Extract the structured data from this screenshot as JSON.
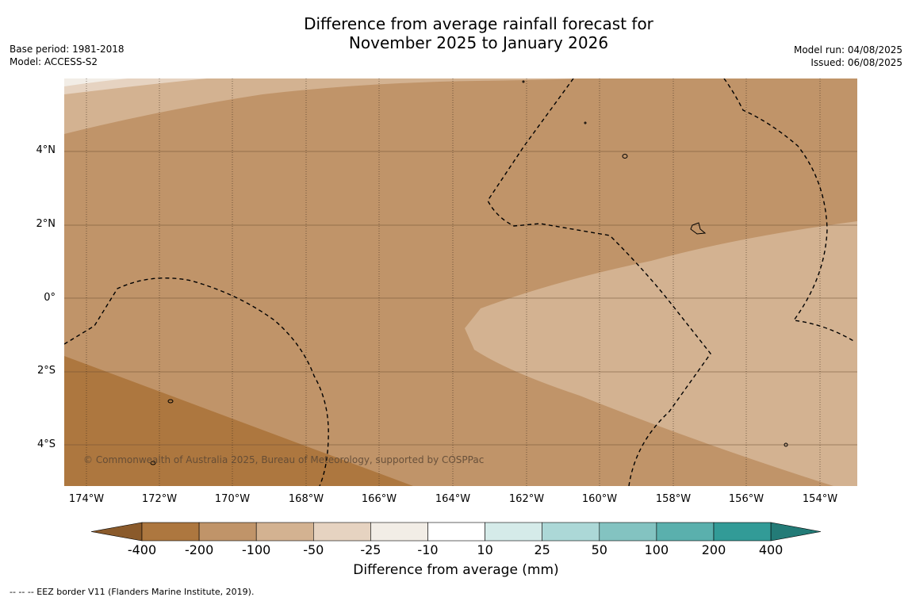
{
  "title_line1": "Difference from average rainfall forecast for",
  "title_line2": "November 2025 to January 2026",
  "meta_left": {
    "base_period": "Base period: 1981-2018",
    "model": "Model: ACCESS-S2"
  },
  "meta_right": {
    "model_run": "Model run: 04/08/2025",
    "issued": "Issued: 06/08/2025"
  },
  "lat_labels": [
    "4°N",
    "2°N",
    "0°",
    "2°S",
    "4°S"
  ],
  "lon_labels": [
    "174°W",
    "172°W",
    "170°W",
    "168°W",
    "166°W",
    "164°W",
    "162°W",
    "160°W",
    "158°W",
    "156°W",
    "154°W"
  ],
  "copyright": "© Commonwealth of Australia 2025, Bureau of Meteorology, supported by COSPPac",
  "colorbar": {
    "ticks": [
      "-400",
      "-200",
      "-100",
      "-50",
      "-25",
      "-10",
      "10",
      "25",
      "50",
      "100",
      "200",
      "400"
    ],
    "colors": [
      "#8a5a2b",
      "#ad773f",
      "#c09469",
      "#d3b291",
      "#e6d3c1",
      "#f2ede6",
      "#ffffff",
      "#d5ebe9",
      "#acd8d7",
      "#83c3c1",
      "#5ab0ad",
      "#329b97",
      "#237b77"
    ],
    "label": "Difference from average (mm)"
  },
  "legend_footnote": "--  --  -- EEZ border V11 (Flanders Marine Institute, 2019)."
}
